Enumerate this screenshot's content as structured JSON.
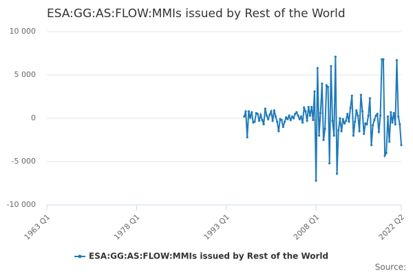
{
  "chart_data": {
    "type": "line",
    "title": "ESA:GG:AS:FLOW:MMIs issued by Rest of the World",
    "source_label": "Source:",
    "x": [
      "1996 Q1",
      "1996 Q2",
      "1996 Q3",
      "1996 Q4",
      "1997 Q1",
      "1997 Q2",
      "1997 Q3",
      "1997 Q4",
      "1998 Q1",
      "1998 Q2",
      "1998 Q3",
      "1998 Q4",
      "1999 Q1",
      "1999 Q2",
      "1999 Q3",
      "1999 Q4",
      "2000 Q1",
      "2000 Q2",
      "2000 Q3",
      "2000 Q4",
      "2001 Q1",
      "2001 Q2",
      "2001 Q3",
      "2001 Q4",
      "2002 Q1",
      "2002 Q2",
      "2002 Q3",
      "2002 Q4",
      "2003 Q1",
      "2003 Q2",
      "2003 Q3",
      "2003 Q4",
      "2004 Q1",
      "2004 Q2",
      "2004 Q3",
      "2004 Q4",
      "2005 Q1",
      "2005 Q2",
      "2005 Q3",
      "2005 Q4",
      "2006 Q1",
      "2006 Q2",
      "2006 Q3",
      "2006 Q4",
      "2007 Q1",
      "2007 Q2",
      "2007 Q3",
      "2007 Q4",
      "2008 Q1",
      "2008 Q2",
      "2008 Q3",
      "2008 Q4",
      "2009 Q1",
      "2009 Q2",
      "2009 Q3",
      "2009 Q4",
      "2010 Q1",
      "2010 Q2",
      "2010 Q3",
      "2010 Q4",
      "2011 Q1",
      "2011 Q2",
      "2011 Q3",
      "2011 Q4",
      "2012 Q1",
      "2012 Q2",
      "2012 Q3",
      "2012 Q4",
      "2013 Q1",
      "2013 Q2",
      "2013 Q3",
      "2013 Q4",
      "2014 Q1",
      "2014 Q2",
      "2014 Q3",
      "2014 Q4",
      "2015 Q1",
      "2015 Q2",
      "2015 Q3",
      "2015 Q4",
      "2016 Q1",
      "2016 Q2",
      "2016 Q3",
      "2016 Q4",
      "2017 Q1",
      "2017 Q2",
      "2017 Q3",
      "2017 Q4",
      "2018 Q1",
      "2018 Q2",
      "2018 Q3",
      "2018 Q4",
      "2019 Q1",
      "2019 Q2",
      "2019 Q3",
      "2019 Q4",
      "2020 Q1",
      "2020 Q2",
      "2020 Q3",
      "2020 Q4",
      "2021 Q1",
      "2021 Q2",
      "2021 Q3",
      "2021 Q4",
      "2022 Q1",
      "2022 Q2"
    ],
    "series": [
      {
        "name": "ESA:GG:AS:FLOW:MMIs issued by Rest of the World",
        "color": "#1f7ab8",
        "values": [
          200,
          800,
          -2200,
          800,
          100,
          700,
          -500,
          -400,
          600,
          500,
          -300,
          400,
          -200,
          -700,
          1100,
          300,
          -100,
          400,
          800,
          -300,
          900,
          200,
          -400,
          -1500,
          -100,
          -200,
          -1000,
          -400,
          100,
          -100,
          300,
          -200,
          200,
          0,
          500,
          700,
          300,
          -100,
          200,
          -500,
          1200,
          800,
          -300,
          1300,
          300,
          1300,
          -200,
          3100,
          -7200,
          5800,
          -2000,
          600,
          4000,
          -2500,
          -1200,
          3800,
          3600,
          -5200,
          6000,
          -300,
          -2000,
          7100,
          -6400,
          -1400,
          0,
          -1500,
          -100,
          -600,
          -300,
          500,
          -400,
          1200,
          2600,
          -2000,
          -400,
          900,
          300,
          -1500,
          2700,
          800,
          -1800,
          -600,
          -700,
          300,
          2300,
          -3100,
          -800,
          -200,
          300,
          500,
          -1600,
          300,
          6800,
          6800,
          -4300,
          -4000,
          200,
          -2700,
          700,
          -500,
          600,
          -700,
          6700,
          200,
          -700,
          -3100
        ]
      }
    ],
    "xlim": [
      "1963 Q1",
      "2022 Q2"
    ],
    "xticks": [
      "1963 Q1",
      "1978 Q1",
      "1993 Q1",
      "2008 Q1",
      "2022 Q2"
    ],
    "ylim": [
      -10000,
      10000
    ],
    "yticks": [
      {
        "value": -10000,
        "label": "-10 000"
      },
      {
        "value": -5000,
        "label": "-5 000"
      },
      0,
      {
        "value": 5000,
        "label": "5 000"
      },
      {
        "value": 10000,
        "label": "10 000"
      }
    ],
    "grid": true
  }
}
